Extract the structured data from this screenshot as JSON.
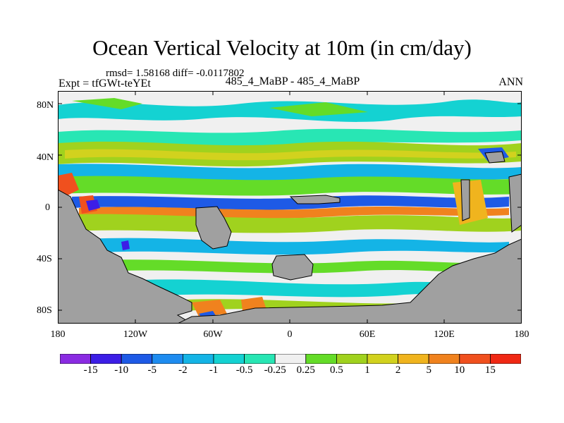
{
  "title": "Ocean Vertical Velocity at 10m (in cm/day)",
  "stats": "rmsd= 1.58168 diff= -0.0117802",
  "expt": "Expt = tfGWt-teYEt",
  "comparison": "485_4_MaBP - 485_4_MaBP",
  "season": "ANN",
  "lat_labels": [
    "80N",
    "40N",
    "0",
    "40S",
    "80S"
  ],
  "lon_labels": [
    "180",
    "120W",
    "60W",
    "0",
    "60E",
    "120E",
    "180"
  ],
  "colorbar": {
    "labels": [
      "-15",
      "-10",
      "-5",
      "-2",
      "-1",
      "-0.5",
      "-0.25",
      "0.25",
      "0.5",
      "1",
      "2",
      "5",
      "10",
      "15"
    ],
    "colors": [
      "#8a2be2",
      "#3c1ee6",
      "#1e5ae6",
      "#1e8cf0",
      "#14b4e6",
      "#14d2d2",
      "#28e6b4",
      "#f0f0f0",
      "#64dc28",
      "#a0d21e",
      "#d2d21e",
      "#f0b41e",
      "#f0821e",
      "#f0501e",
      "#f02814"
    ]
  },
  "land_color": "#a0a0a0"
}
